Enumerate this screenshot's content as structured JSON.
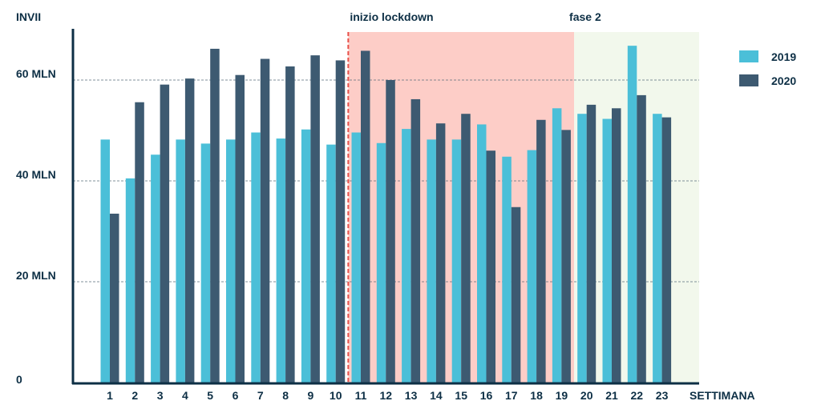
{
  "chart_data": {
    "type": "bar",
    "ylabel": "INVII",
    "xlabel": "SETTIMANA",
    "ylim": [
      0,
      70
    ],
    "grid": true,
    "legend_position": "top-right",
    "yticks": [
      {
        "value": 0,
        "label": "0"
      },
      {
        "value": 20,
        "label": "20 MLN"
      },
      {
        "value": 40,
        "label": "40 MLN"
      },
      {
        "value": 60,
        "label": "60 MLN"
      }
    ],
    "categories": [
      "1",
      "2",
      "3",
      "4",
      "5",
      "6",
      "7",
      "8",
      "9",
      "10",
      "11",
      "12",
      "13",
      "14",
      "15",
      "16",
      "17",
      "18",
      "19",
      "20",
      "21",
      "22",
      "23"
    ],
    "series": [
      {
        "name": "2019",
        "color": "#4bbfd8",
        "values": [
          48.2,
          40.5,
          45.2,
          48.2,
          47.4,
          48.2,
          49.6,
          48.4,
          50.2,
          47.2,
          49.6,
          47.5,
          50.3,
          48.2,
          48.2,
          51.2,
          44.8,
          46.1,
          54.4,
          53.3,
          52.3,
          66.8,
          53.3
        ]
      },
      {
        "name": "2020",
        "color": "#3d5a71",
        "values": [
          33.5,
          55.6,
          59.1,
          60.3,
          66.2,
          61.0,
          64.2,
          62.7,
          64.9,
          63.9,
          65.8,
          60.0,
          56.2,
          51.4,
          53.3,
          46.0,
          34.8,
          52.1,
          50.1,
          55.1,
          54.4,
          57.0,
          52.6
        ]
      }
    ],
    "annotations": [
      {
        "text": "inizio lockdown",
        "after_category": "10",
        "color": "#e8504a"
      },
      {
        "text": "fase 2",
        "after_category": "19"
      }
    ],
    "regions": [
      {
        "name": "lockdown",
        "from_category": "11",
        "to_category": "19",
        "color": "#fdcdc7"
      },
      {
        "name": "fase 2",
        "from_category": "20",
        "to_category": "23",
        "color": "#f2f8ec"
      }
    ]
  }
}
